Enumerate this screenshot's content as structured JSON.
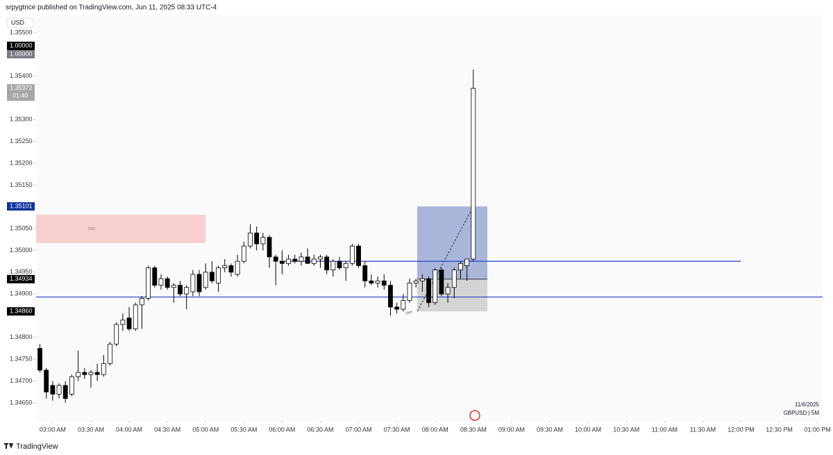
{
  "header": "srpygtnce published on TradingView.com, Jun 11, 2025 08:33 UTC-4",
  "footer": "TradingView",
  "chart_data": {
    "type": "candlestick",
    "currency": "USD",
    "symbol": "GBPUSD | 5M",
    "date": "11/6/2025",
    "up_color": "#ffffff",
    "down_color": "#000000",
    "x": [
      "02:50 AM",
      "02:55 AM",
      "03:00 AM",
      "03:05 AM",
      "03:10 AM",
      "03:15 AM",
      "03:20 AM",
      "03:25 AM",
      "03:30 AM",
      "03:35 AM",
      "03:40 AM",
      "03:45 AM",
      "03:50 AM",
      "03:55 AM",
      "04:00 AM",
      "04:05 AM",
      "04:10 AM",
      "04:15 AM",
      "04:20 AM",
      "04:25 AM",
      "04:30 AM",
      "04:35 AM",
      "04:40 AM",
      "04:45 AM",
      "04:50 AM",
      "04:55 AM",
      "05:00 AM",
      "05:05 AM",
      "05:10 AM",
      "05:15 AM",
      "05:20 AM",
      "05:25 AM",
      "05:30 AM",
      "05:35 AM",
      "05:40 AM",
      "05:45 AM",
      "05:50 AM",
      "05:55 AM",
      "06:00 AM",
      "06:05 AM",
      "06:10 AM",
      "06:15 AM",
      "06:20 AM",
      "06:25 AM",
      "06:30 AM",
      "06:35 AM",
      "06:40 AM",
      "06:45 AM",
      "06:50 AM",
      "06:55 AM",
      "07:00 AM",
      "07:05 AM",
      "07:10 AM",
      "07:15 AM",
      "07:20 AM",
      "07:25 AM",
      "07:30 AM",
      "07:35 AM",
      "07:40 AM",
      "07:45 AM",
      "07:50 AM",
      "07:55 AM",
      "08:00 AM",
      "08:05 AM",
      "08:10 AM",
      "08:15 AM",
      "08:20 AM",
      "08:25 AM",
      "08:30 AM"
    ],
    "open": [
      1.34775,
      1.34725,
      1.3469,
      1.3467,
      1.3469,
      1.3467,
      1.3471,
      1.3472,
      1.34715,
      1.3472,
      1.34715,
      1.3474,
      1.34785,
      1.3483,
      1.34845,
      1.3482,
      1.34875,
      1.3489,
      1.3496,
      1.3492,
      1.34935,
      1.34915,
      1.3492,
      1.349,
      1.34905,
      1.34945,
      1.34915,
      1.3495,
      1.34925,
      1.3496,
      1.34965,
      1.34945,
      1.34975,
      1.3501,
      1.3504,
      1.35015,
      1.3503,
      1.34985,
      1.34975,
      1.3497,
      1.3498,
      1.34975,
      1.34985,
      1.3497,
      1.3498,
      1.34985,
      1.34955,
      1.34975,
      1.3496,
      1.3497,
      1.3501,
      1.34965,
      1.3493,
      1.34925,
      1.3493,
      1.3492,
      1.3487,
      1.34865,
      1.34885,
      1.34925,
      1.3493,
      1.34935,
      1.3488,
      1.34955,
      1.349,
      1.34915,
      1.34955,
      1.34965,
      1.3498
    ],
    "high": [
      1.34785,
      1.3473,
      1.347,
      1.34695,
      1.347,
      1.34715,
      1.3477,
      1.3473,
      1.34725,
      1.3474,
      1.3476,
      1.3479,
      1.34835,
      1.34855,
      1.3487,
      1.3488,
      1.34895,
      1.34965,
      1.34965,
      1.34945,
      1.3494,
      1.34925,
      1.3493,
      1.3492,
      1.34955,
      1.34955,
      1.3497,
      1.34975,
      1.34965,
      1.3498,
      1.3497,
      1.3499,
      1.3502,
      1.3506,
      1.35055,
      1.3504,
      1.35035,
      1.3499,
      1.35,
      1.3499,
      1.3499,
      1.34995,
      1.35005,
      1.3499,
      1.3499,
      1.3499,
      1.3498,
      1.34985,
      1.34975,
      1.35015,
      1.35015,
      1.34975,
      1.34945,
      1.3494,
      1.34945,
      1.3493,
      1.3488,
      1.349,
      1.34935,
      1.34935,
      1.34945,
      1.3494,
      1.3496,
      1.3496,
      1.34925,
      1.3496,
      1.34975,
      1.3498,
      1.35415
    ],
    "low": [
      1.3472,
      1.3466,
      1.34655,
      1.3466,
      1.3465,
      1.34665,
      1.347,
      1.34705,
      1.34685,
      1.347,
      1.3471,
      1.34735,
      1.3478,
      1.34815,
      1.34815,
      1.34815,
      1.3482,
      1.34885,
      1.34915,
      1.3491,
      1.3491,
      1.3488,
      1.34895,
      1.34865,
      1.34895,
      1.34895,
      1.3491,
      1.34925,
      1.34905,
      1.3495,
      1.3494,
      1.3494,
      1.3497,
      1.35005,
      1.35,
      1.35,
      1.3496,
      1.3492,
      1.34945,
      1.34965,
      1.3497,
      1.34965,
      1.3497,
      1.34965,
      1.3496,
      1.34945,
      1.3494,
      1.34955,
      1.3493,
      1.34965,
      1.3496,
      1.34915,
      1.3492,
      1.34915,
      1.3491,
      1.3485,
      1.34855,
      1.3486,
      1.3488,
      1.34915,
      1.34905,
      1.3487,
      1.34875,
      1.34895,
      1.3488,
      1.3489,
      1.34935,
      1.3493,
      1.34975
    ],
    "close": [
      1.34725,
      1.34675,
      1.3467,
      1.3469,
      1.3466,
      1.3471,
      1.3472,
      1.34715,
      1.3472,
      1.34715,
      1.3474,
      1.34785,
      1.3483,
      1.3484,
      1.3482,
      1.34875,
      1.3489,
      1.3496,
      1.3492,
      1.34935,
      1.34915,
      1.3492,
      1.349,
      1.34915,
      1.34945,
      1.34905,
      1.3495,
      1.3493,
      1.3496,
      1.34965,
      1.3495,
      1.34975,
      1.3501,
      1.3504,
      1.35015,
      1.3503,
      1.34985,
      1.34975,
      1.3497,
      1.3498,
      1.34975,
      1.34985,
      1.3497,
      1.3498,
      1.34985,
      1.34955,
      1.34975,
      1.3496,
      1.3497,
      1.3501,
      1.34965,
      1.3493,
      1.34925,
      1.3493,
      1.3492,
      1.3487,
      1.34865,
      1.34885,
      1.34925,
      1.3493,
      1.34935,
      1.3488,
      1.34955,
      1.349,
      1.34915,
      1.34955,
      1.3497,
      1.3498,
      1.35372
    ],
    "xlim": [
      "02:47 AM",
      "01:04 PM"
    ],
    "xticks": [
      "03:00 AM",
      "03:30 AM",
      "04:00 AM",
      "04:30 AM",
      "05:00 AM",
      "05:30 AM",
      "06:00 AM",
      "06:30 AM",
      "07:00 AM",
      "07:30 AM",
      "08:00 AM",
      "08:30 AM",
      "09:00 AM",
      "09:30 AM",
      "10:00 AM",
      "10:30 AM",
      "11:00 AM",
      "11:30 AM",
      "12:00 PM",
      "12:30 PM",
      "01:00 PM"
    ],
    "ylim": [
      1.34618,
      1.35527
    ],
    "yticks": [
      {
        "value": 1.355,
        "label": "1.35500"
      },
      {
        "value": 1.354,
        "label": "1.35400"
      },
      {
        "value": 1.353,
        "label": "1.35300"
      },
      {
        "value": 1.3525,
        "label": "1.35250"
      },
      {
        "value": 1.352,
        "label": "1.35200"
      },
      {
        "value": 1.3515,
        "label": "1.35150"
      },
      {
        "value": 1.3505,
        "label": "1.35050"
      },
      {
        "value": 1.35,
        "label": "1.35000"
      },
      {
        "value": 1.3495,
        "label": "1.34950"
      },
      {
        "value": 1.349,
        "label": "1.34900"
      },
      {
        "value": 1.348,
        "label": "1.34800"
      },
      {
        "value": 1.3475,
        "label": "1.34750"
      },
      {
        "value": 1.347,
        "label": "1.34700"
      },
      {
        "value": 1.3465,
        "label": "1.34650"
      }
    ],
    "scale_labels": [
      "1.00000",
      "1.00000"
    ],
    "countdown": "01:40",
    "price_labels": [
      {
        "value": 1.35372,
        "label": "1.35372",
        "color": "#a6a6a6"
      },
      {
        "value": 1.35101,
        "label": "1.35101",
        "color": "#0d3399"
      },
      {
        "value": 1.34934,
        "label": "1.34934",
        "color": "#000000"
      },
      {
        "value": 1.3486,
        "label": "1.34860",
        "color": "#000000"
      }
    ],
    "levels": [
      {
        "value": 1.34975,
        "from": "05:58 AM",
        "to": "12:00 PM",
        "color": "#1e3fcf"
      },
      {
        "value": 1.34893,
        "from": "02:47 AM",
        "to": "01:04 PM",
        "color": "#1e3fcf"
      }
    ],
    "zones": [
      {
        "text": "lokz",
        "from": "02:47 AM",
        "to": "05:00 AM",
        "top": 1.35082,
        "bottom": 1.35017,
        "color": "#f7cfcf"
      }
    ],
    "position": {
      "from": "07:46 AM",
      "to": "08:41 AM",
      "entry": 1.34934,
      "target": 1.35101,
      "stop": 1.3486,
      "target_color": "#9aa9d4",
      "stop_color": "#cfcfcf"
    },
    "annotations": [
      {
        "text": "SMT",
        "x": "07:37 AM",
        "y": 1.34855
      }
    ]
  }
}
